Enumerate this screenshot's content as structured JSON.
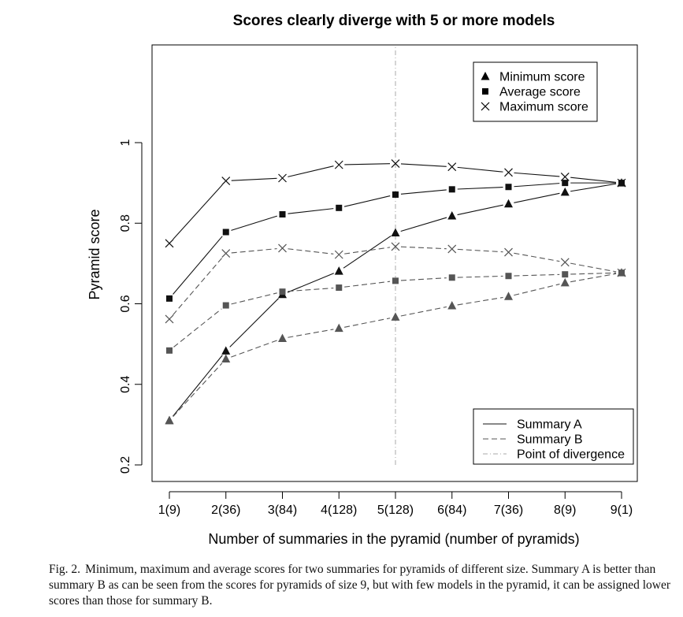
{
  "chart_data": {
    "type": "line",
    "title": "Scores clearly diverge with 5 or more models",
    "xlabel": "Number of summaries in the pyramid (number of pyramids)",
    "ylabel": "Pyramid score",
    "categories": [
      "1(9)",
      "2(36)",
      "3(84)",
      "4(128)",
      "5(128)",
      "6(84)",
      "7(36)",
      "8(9)",
      "9(1)"
    ],
    "ylim": [
      0.2,
      1.0
    ],
    "yticks": [
      "0.2",
      "0.4",
      "0.6",
      "0.8",
      "1"
    ],
    "grid": false,
    "divergence_x": "5(128)",
    "series": [
      {
        "summary": "A",
        "stat": "Maximum",
        "marker": "x",
        "values": [
          0.75,
          0.905,
          0.912,
          0.945,
          0.948,
          0.94,
          0.926,
          0.915,
          0.9
        ]
      },
      {
        "summary": "A",
        "stat": "Average",
        "marker": "square",
        "values": [
          0.613,
          0.778,
          0.822,
          0.838,
          0.871,
          0.884,
          0.89,
          0.9,
          0.9
        ]
      },
      {
        "summary": "A",
        "stat": "Minimum",
        "marker": "triangle",
        "values": [
          0.31,
          0.483,
          0.623,
          0.681,
          0.776,
          0.818,
          0.848,
          0.877,
          0.9
        ]
      },
      {
        "summary": "B",
        "stat": "Maximum",
        "marker": "x",
        "values": [
          0.562,
          0.725,
          0.738,
          0.722,
          0.742,
          0.736,
          0.728,
          0.703,
          0.677
        ]
      },
      {
        "summary": "B",
        "stat": "Average",
        "marker": "square",
        "values": [
          0.484,
          0.596,
          0.63,
          0.64,
          0.657,
          0.665,
          0.669,
          0.673,
          0.677
        ]
      },
      {
        "summary": "B",
        "stat": "Minimum",
        "marker": "triangle",
        "values": [
          0.31,
          0.463,
          0.514,
          0.539,
          0.567,
          0.595,
          0.618,
          0.652,
          0.677
        ]
      }
    ],
    "legend_markers": {
      "position": "top-right",
      "items": [
        {
          "marker": "triangle",
          "label": "Minimum score"
        },
        {
          "marker": "square",
          "label": "Average score"
        },
        {
          "marker": "x",
          "label": "Maximum score"
        }
      ]
    },
    "legend_lines": {
      "position": "bottom-right",
      "items": [
        {
          "style": "solid",
          "label": "Summary A"
        },
        {
          "style": "dashed",
          "label": "Summary B"
        },
        {
          "style": "dotdash",
          "label": "Point of divergence"
        }
      ]
    },
    "colors": {
      "summary_a": "#111111",
      "summary_b": "#555555",
      "divergence": "#aaaaaa"
    }
  },
  "caption": {
    "label": "Fig. 2.",
    "text": "Minimum, maximum and average scores for two summaries for pyramids of different size. Summary A is better than summary B as can be seen from the scores for pyramids of size 9, but with few models in the pyramid, it can be assigned lower scores than those for summary B."
  }
}
